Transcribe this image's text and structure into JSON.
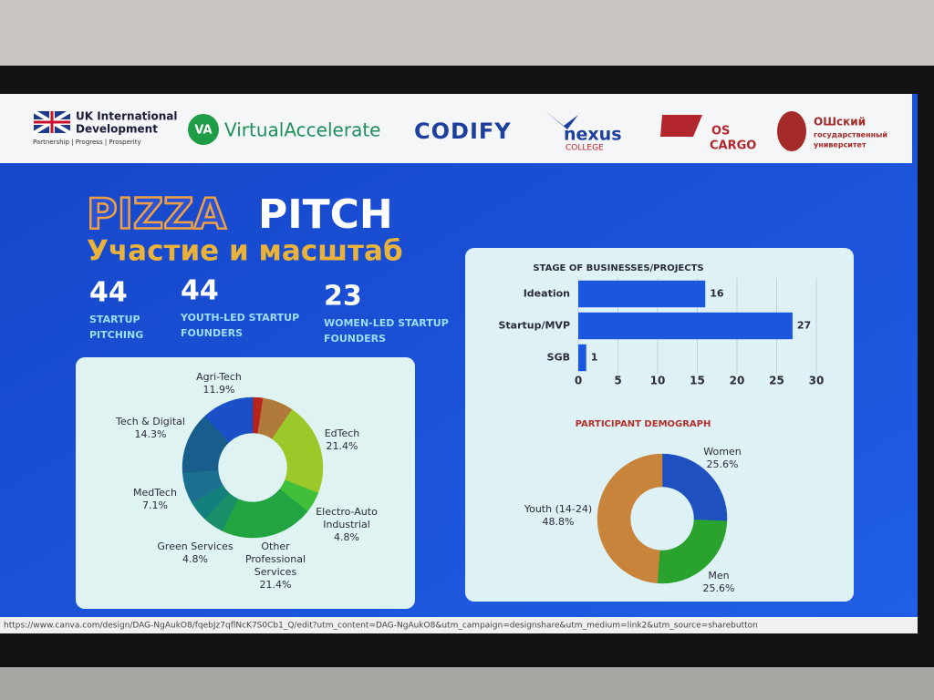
{
  "header": {
    "uk_line1": "UK International",
    "uk_line2": "Development",
    "uk_tagline": "Partnership  |  Progress  |  Prosperity",
    "va_badge": "VA",
    "va_name": "VirtualAccelerate",
    "codify": "CODIFY",
    "nexus": "nexus",
    "nexus_sub": "COLLEGE",
    "cargo_line1": "OS",
    "cargo_line2": "CARGO",
    "osh_line1": "ОШский",
    "osh_line2": "государственный",
    "osh_line3": "университет"
  },
  "title": {
    "pizza": "PIZZA",
    "pitch": "PITCH",
    "subtitle": "Участие и масштаб"
  },
  "stats": [
    {
      "value": 44,
      "label": [
        "STARTUP",
        "PITCHING"
      ]
    },
    {
      "value": 44,
      "label": [
        "YOUTH-LED STARTUP",
        "FOUNDERS"
      ]
    },
    {
      "value": 23,
      "label": [
        "WOMEN-LED STARTUP",
        "FOUNDERS"
      ]
    }
  ],
  "url": "https://www.canva.com/design/DAG-NgAukO8/fqebJz7qflNcK7S0Cb1_Q/edit?utm_content=DAG-NgAukO8&utm_campaign=designshare&utm_medium=link2&utm_source=sharebutton",
  "chart_data": [
    {
      "type": "donut",
      "categories": [
        null,
        null,
        [
          "EdTech"
        ],
        [
          "Electro-Auto",
          "Industrial"
        ],
        [
          "Other",
          "Professional",
          "Services"
        ],
        [
          "Green Services"
        ],
        null,
        [
          "MedTech"
        ],
        [
          "Tech & Digital"
        ],
        [
          "Agri-Tech"
        ]
      ],
      "values": [
        2.4,
        7.1,
        21.4,
        4.8,
        21.4,
        4.8,
        4.8,
        7.1,
        14.3,
        11.9
      ],
      "value_labels": [
        null,
        null,
        "21.4%",
        "4.8%",
        "21.4%",
        "4.8%",
        null,
        "7.1%",
        "14.3%",
        "11.9%"
      ],
      "colors": [
        "#b8231c",
        "#b07a3a",
        "#9cc92a",
        "#3fbf3a",
        "#22a540",
        "#1a8f6a",
        "#14807d",
        "#1b7090",
        "#175e8c",
        "#1a4fc8"
      ]
    },
    {
      "type": "hbar",
      "title": "STAGE OF BUSINESSES/PROJECTS",
      "categories": [
        "Ideation",
        "Startup/MVP",
        "SGB"
      ],
      "values": [
        16,
        27,
        1
      ],
      "color": "#1a56e0",
      "xlim": [
        0,
        30
      ],
      "xticks": [
        0,
        5,
        10,
        15,
        20,
        25,
        30
      ],
      "grid": true
    },
    {
      "type": "donut",
      "title": "PARTICIPANT DEMOGRAPH",
      "categories": [
        [
          "Women"
        ],
        [
          "Men"
        ],
        [
          "Youth (14-24)"
        ]
      ],
      "values": [
        25.6,
        25.6,
        48.8
      ],
      "value_labels": [
        "25.6%",
        "25.6%",
        "48.8%"
      ],
      "colors": [
        "#1e50c0",
        "#2aa22e",
        "#c8843a"
      ]
    }
  ]
}
